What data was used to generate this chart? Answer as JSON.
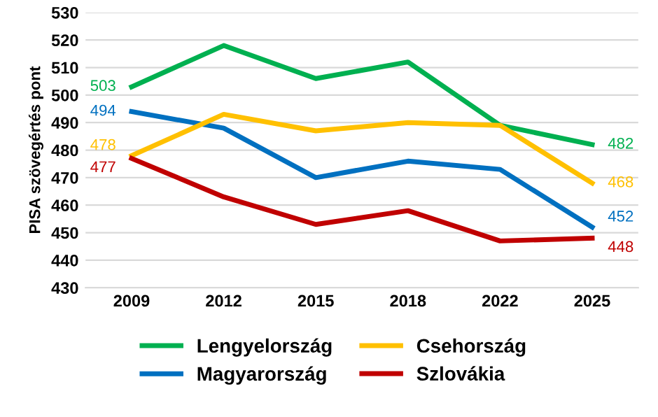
{
  "chart_data": {
    "type": "line",
    "ylabel": "PISA szövegértés pont",
    "categories": [
      "2009",
      "2012",
      "2015",
      "2018",
      "2022",
      "2025"
    ],
    "series": [
      {
        "name": "Lengyelország",
        "color": "#00b050",
        "values": [
          503,
          518,
          506,
          512,
          489,
          482
        ],
        "value_labels": [
          "503",
          null,
          null,
          null,
          null,
          "482"
        ]
      },
      {
        "name": "Magyarország",
        "color": "#0070c0",
        "values": [
          494,
          488,
          470,
          476,
          473,
          452
        ],
        "value_labels": [
          "494",
          null,
          null,
          null,
          null,
          "452"
        ]
      },
      {
        "name": "Csehország",
        "color": "#ffc000",
        "values": [
          478,
          493,
          487,
          490,
          489,
          468
        ],
        "value_labels": [
          "478",
          null,
          null,
          null,
          null,
          "468"
        ]
      },
      {
        "name": "Szlovákia",
        "color": "#c00000",
        "values": [
          477,
          463,
          453,
          458,
          447,
          448
        ],
        "value_labels": [
          "477",
          null,
          null,
          null,
          null,
          "448"
        ]
      }
    ],
    "ylim": [
      430,
      530
    ],
    "yticks": [
      430,
      440,
      450,
      460,
      470,
      480,
      490,
      500,
      510,
      520,
      530
    ],
    "grid": "y",
    "legend": "bottom",
    "marker": "none",
    "line_style": "solid"
  }
}
